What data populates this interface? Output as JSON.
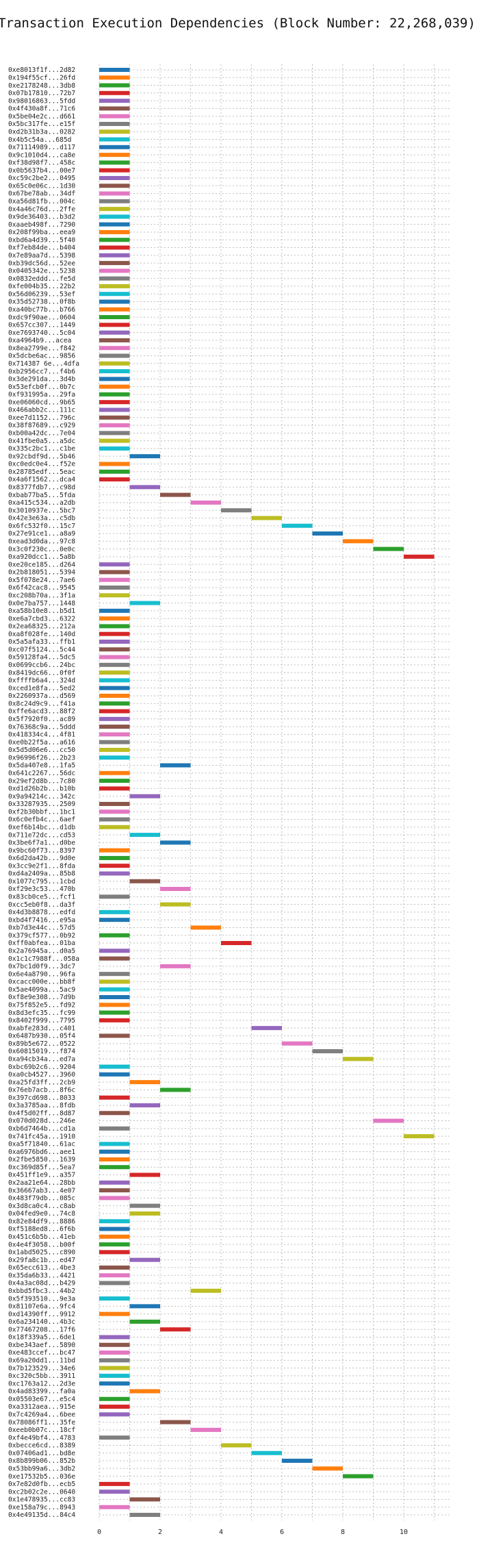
{
  "chart_data": {
    "type": "bar",
    "orientation": "horizontal-gantt",
    "title": "Transaction Execution Dependencies (Block Number: 22,268,039)",
    "xlabel": "",
    "ylabel": "",
    "xlim": [
      0,
      11.5
    ],
    "x_ticks": [
      0,
      2,
      4,
      6,
      8,
      10
    ],
    "grid": "vertical dotted",
    "palette": [
      "#1f77b4",
      "#ff7f0e",
      "#2ca02c",
      "#d62728",
      "#9467bd",
      "#8c564b",
      "#e377c2",
      "#7f7f7f",
      "#bcbd22",
      "#17becf"
    ],
    "bar_duration": 1,
    "transactions": [
      {
        "label": "0xe8013f1f...2d82",
        "start": 0
      },
      {
        "label": "0x194f55cf...26fd",
        "start": 0
      },
      {
        "label": "0xe2178248...3db8",
        "start": 0
      },
      {
        "label": "0x07b17810...72b7",
        "start": 0
      },
      {
        "label": "0x98016863...5fdd",
        "start": 0
      },
      {
        "label": "0x4f430a8f...71c6",
        "start": 0
      },
      {
        "label": "0x5be04e2c...d661",
        "start": 0
      },
      {
        "label": "0x5bc317fe...e15f",
        "start": 0
      },
      {
        "label": "0xd2b31b3a...0282",
        "start": 0
      },
      {
        "label": "0x4b5c54a...685d",
        "start": 0
      },
      {
        "label": "0x71114989...d117",
        "start": 0
      },
      {
        "label": "0x9c1010d4...ca8e",
        "start": 0
      },
      {
        "label": "0xf38d98f7...458c",
        "start": 0
      },
      {
        "label": "0x0b5637b4...00e7",
        "start": 0
      },
      {
        "label": "0xc59c2be2...0495",
        "start": 0
      },
      {
        "label": "0x65c0e06c...1d30",
        "start": 0
      },
      {
        "label": "0x67be78ab...34df",
        "start": 0
      },
      {
        "label": "0xa56d81fb...004c",
        "start": 0
      },
      {
        "label": "0x4a46c76d...2ffe",
        "start": 0
      },
      {
        "label": "0x9de36403...b3d2",
        "start": 0
      },
      {
        "label": "0xaaeb498f...7290",
        "start": 0
      },
      {
        "label": "0x208f99ba...eea9",
        "start": 0
      },
      {
        "label": "0xbd6a4d39...5f40",
        "start": 0
      },
      {
        "label": "0xf7eb84de...b404",
        "start": 0
      },
      {
        "label": "0x7e89aa7d...5398",
        "start": 0
      },
      {
        "label": "0xb39dc56d...52ee",
        "start": 0
      },
      {
        "label": "0x0405342e...5238",
        "start": 0
      },
      {
        "label": "0x0832eddd...fe5d",
        "start": 0
      },
      {
        "label": "0xfe004b35...22b2",
        "start": 0
      },
      {
        "label": "0x56d06239...53ef",
        "start": 0
      },
      {
        "label": "0x35d52738...0f8b",
        "start": 0
      },
      {
        "label": "0xa40bc77b...b766",
        "start": 0
      },
      {
        "label": "0xdc9f90ae...0604",
        "start": 0
      },
      {
        "label": "0x657cc307...1449",
        "start": 0
      },
      {
        "label": "0xe7693740...5c04",
        "start": 0
      },
      {
        "label": "0xa4964b9...acea",
        "start": 0
      },
      {
        "label": "0x8ea2799e...f842",
        "start": 0
      },
      {
        "label": "0x5dcbe6ac...9856",
        "start": 0
      },
      {
        "label": "0x714387 6e...4dfa",
        "start": 0
      },
      {
        "label": "0xb2956cc7...f4b6",
        "start": 0
      },
      {
        "label": "0x3de291da...3d4b",
        "start": 0
      },
      {
        "label": "0x53efcb0f...0b7c",
        "start": 0
      },
      {
        "label": "0xf931995a...29fa",
        "start": 0
      },
      {
        "label": "0xe06060cd...9b65",
        "start": 0
      },
      {
        "label": "0x466abb2c...111c",
        "start": 0
      },
      {
        "label": "0xee7d1152...796c",
        "start": 0
      },
      {
        "label": "0x38f87689...c929",
        "start": 0
      },
      {
        "label": "0xb00a42dc...7e04",
        "start": 0
      },
      {
        "label": "0x41fbe0a5...a5dc",
        "start": 0
      },
      {
        "label": "0x335c2bc1...c1be",
        "start": 0
      },
      {
        "label": "0x92cbdf9d...5b46",
        "start": 1
      },
      {
        "label": "0xc0edc0e4...f52e",
        "start": 0
      },
      {
        "label": "0x28785edf...5eac",
        "start": 0
      },
      {
        "label": "0x4a6f1562...dca4",
        "start": 0
      },
      {
        "label": "0x8377fdb7...c98d",
        "start": 1
      },
      {
        "label": "0xbab77ba5...5fda",
        "start": 2
      },
      {
        "label": "0xa415c534...a2db",
        "start": 3
      },
      {
        "label": "0x3010937e...5bc7",
        "start": 4
      },
      {
        "label": "0x42e3e63a...c5db",
        "start": 5
      },
      {
        "label": "0x6fc532f0...15c7",
        "start": 6
      },
      {
        "label": "0x27e91ce1...a8a9",
        "start": 7
      },
      {
        "label": "0xead3d0da...97c8",
        "start": 8
      },
      {
        "label": "0x3c0f230c...0e0c",
        "start": 9
      },
      {
        "label": "0xa920dcc1...5a8b",
        "start": 10
      },
      {
        "label": "0xe20ce185...d264",
        "start": 0
      },
      {
        "label": "0x2b818051...5394",
        "start": 0
      },
      {
        "label": "0x5f078e24...7ae6",
        "start": 0
      },
      {
        "label": "0x6f42cac8...9545",
        "start": 0
      },
      {
        "label": "0xc208b70a...3f1a",
        "start": 0
      },
      {
        "label": "0x0e7ba757...1448",
        "start": 1
      },
      {
        "label": "0xa58b10e8...b5d1",
        "start": 0
      },
      {
        "label": "0xe6a7cbd3...6322",
        "start": 0
      },
      {
        "label": "0x2ea68325...212a",
        "start": 0
      },
      {
        "label": "0xa8f028fe...140d",
        "start": 0
      },
      {
        "label": "0x5a5afa33...ffb1",
        "start": 0
      },
      {
        "label": "0xc07f5124...5c44",
        "start": 0
      },
      {
        "label": "0x59128fa4...5dc5",
        "start": 0
      },
      {
        "label": "0x0699ccb6...24bc",
        "start": 0
      },
      {
        "label": "0x8419dc66...0f0f",
        "start": 0
      },
      {
        "label": "0xffffb6a4...324d",
        "start": 0
      },
      {
        "label": "0xced1e8fa...5ed2",
        "start": 0
      },
      {
        "label": "0x2260937a...d569",
        "start": 0
      },
      {
        "label": "0x8c24d9c9...f41a",
        "start": 0
      },
      {
        "label": "0xffe6acd3...88f2",
        "start": 0
      },
      {
        "label": "0x5f7920f0...ac89",
        "start": 0
      },
      {
        "label": "0x76368c9a...5ddd",
        "start": 0
      },
      {
        "label": "0x418334c4...4f81",
        "start": 0
      },
      {
        "label": "0xe0b22f5a...a616",
        "start": 0
      },
      {
        "label": "0x5d5d06e6...cc50",
        "start": 0
      },
      {
        "label": "0x96996f26...2b23",
        "start": 0
      },
      {
        "label": "0x5da407e8...1fa5",
        "start": 2
      },
      {
        "label": "0x641c2267...56dc",
        "start": 0
      },
      {
        "label": "0x29ef2d8b...7c80",
        "start": 0
      },
      {
        "label": "0xd1d26b2b...b10b",
        "start": 0
      },
      {
        "label": "0x9a94214c...342c",
        "start": 1
      },
      {
        "label": "0x33287935...2509",
        "start": 0
      },
      {
        "label": "0xf2b30bbf...1bc1",
        "start": 0
      },
      {
        "label": "0x6c0efb4c...6aef",
        "start": 0
      },
      {
        "label": "0xef6b14bc...d1db",
        "start": 0
      },
      {
        "label": "0x711e72dc...cd53",
        "start": 1
      },
      {
        "label": "0x3be6f7a1...d0be",
        "start": 2
      },
      {
        "label": "0x9bc60f73...8397",
        "start": 0
      },
      {
        "label": "0x6d2da42b...9d0e",
        "start": 0
      },
      {
        "label": "0x3cc9e2f1...8fda",
        "start": 0
      },
      {
        "label": "0xd4a2409a...85b8",
        "start": 0
      },
      {
        "label": "0x1077c795...1cbd",
        "start": 1
      },
      {
        "label": "0xf29e3c53...470b",
        "start": 2
      },
      {
        "label": "0x83cb0ce5...fcf1",
        "start": 0
      },
      {
        "label": "0xcc5eb0f8...da3f",
        "start": 2
      },
      {
        "label": "0x4d3b8878...edfd",
        "start": 0
      },
      {
        "label": "0xbd4f7416...e95a",
        "start": 0
      },
      {
        "label": "0xb7d3e44c...57d5",
        "start": 3
      },
      {
        "label": "0x379cf577...0b92",
        "start": 0
      },
      {
        "label": "0xff0abfea...01ba",
        "start": 4
      },
      {
        "label": "0x2a76945a...d0a5",
        "start": 0
      },
      {
        "label": "0x1c1c7988f...058a",
        "start": 0
      },
      {
        "label": "0x7bc1d0f9...3dc7",
        "start": 2
      },
      {
        "label": "0x6e4a8790...96fa",
        "start": 0
      },
      {
        "label": "0xcacc000e...bb8f",
        "start": 0
      },
      {
        "label": "0x5ae4099a...5ac9",
        "start": 0
      },
      {
        "label": "0xf8e9e308...7d9b",
        "start": 0
      },
      {
        "label": "0x75f852e5...fd92",
        "start": 0
      },
      {
        "label": "0x8d3efc35...fc99",
        "start": 0
      },
      {
        "label": "0x8402f999...7795",
        "start": 0
      },
      {
        "label": "0xabfe283d...c401",
        "start": 5
      },
      {
        "label": "0x6487b930...05f4",
        "start": 0
      },
      {
        "label": "0x89b5e672...0522",
        "start": 6
      },
      {
        "label": "0x60815019...f874",
        "start": 7
      },
      {
        "label": "0xa94cb34a...ed7a",
        "start": 8
      },
      {
        "label": "0xbc69b2c6...9204",
        "start": 0
      },
      {
        "label": "0xa0cb4527...3960",
        "start": 0
      },
      {
        "label": "0xa25fd3ff...2cb9",
        "start": 1
      },
      {
        "label": "0x76eb7acb...8f6c",
        "start": 2
      },
      {
        "label": "0x397cd698...8033",
        "start": 0
      },
      {
        "label": "0x3a3785aa...8fdb",
        "start": 1
      },
      {
        "label": "0x4f5d02ff...8d87",
        "start": 0
      },
      {
        "label": "0x070d028d...246e",
        "start": 9
      },
      {
        "label": "0xb6d7464b...cd1a",
        "start": 0
      },
      {
        "label": "0x741fc45a...1910",
        "start": 10
      },
      {
        "label": "0xa5f71840...61ac",
        "start": 0
      },
      {
        "label": "0xa6976bd6...aee1",
        "start": 0
      },
      {
        "label": "0x2fbe5850...1639",
        "start": 0
      },
      {
        "label": "0xc369d85f...5ea7",
        "start": 0
      },
      {
        "label": "0x451ff1e9...a357",
        "start": 1
      },
      {
        "label": "0x2aa21e64...28bb",
        "start": 0
      },
      {
        "label": "0x36667ab3...4e07",
        "start": 0
      },
      {
        "label": "0x483f79db...085c",
        "start": 0
      },
      {
        "label": "0x3d8ca0c4...c8ab",
        "start": 1
      },
      {
        "label": "0x04fed9e0...74c8",
        "start": 1
      },
      {
        "label": "0x82e84df9...8886",
        "start": 0
      },
      {
        "label": "0xf5188ed8...6f6b",
        "start": 0
      },
      {
        "label": "0x451c6b5b...41eb",
        "start": 0
      },
      {
        "label": "0x4e4f3058...b00f",
        "start": 0
      },
      {
        "label": "0x1abd5025...c890",
        "start": 0
      },
      {
        "label": "0x29fa8c1b...ed47",
        "start": 1
      },
      {
        "label": "0x65ecc613...4be3",
        "start": 0
      },
      {
        "label": "0x35da6b33...4421",
        "start": 0
      },
      {
        "label": "0x4a3ac08d...b429",
        "start": 0
      },
      {
        "label": "0xbbd5fbc3...44b2",
        "start": 3
      },
      {
        "label": "0x5f393510...9e3a",
        "start": 0
      },
      {
        "label": "0x81107e6a...9fc4",
        "start": 1
      },
      {
        "label": "0xd14390ff...9912",
        "start": 0
      },
      {
        "label": "0x6a234140...4b3c",
        "start": 1
      },
      {
        "label": "0x77467208...17f6",
        "start": 2
      },
      {
        "label": "0x18f339a5...6de1",
        "start": 0
      },
      {
        "label": "0xbe343aef...5890",
        "start": 0
      },
      {
        "label": "0xe483ccef...bc47",
        "start": 0
      },
      {
        "label": "0x69a20dd1...11bd",
        "start": 0
      },
      {
        "label": "0x7b123529...34e6",
        "start": 0
      },
      {
        "label": "0xc320c5bb...3911",
        "start": 0
      },
      {
        "label": "0xc1763a12...2d3e",
        "start": 0
      },
      {
        "label": "0x4ad83399...fa0a",
        "start": 1
      },
      {
        "label": "0x05503e67...e5c4",
        "start": 0
      },
      {
        "label": "0xa3312aea...915e",
        "start": 0
      },
      {
        "label": "0x7c4269a4...6bee",
        "start": 0
      },
      {
        "label": "0x78086ff1...35fe",
        "start": 2
      },
      {
        "label": "0xeeb0b07c...18cf",
        "start": 3
      },
      {
        "label": "0xf4e49bf4...4783",
        "start": 0
      },
      {
        "label": "0xbecce6cd...8389",
        "start": 4
      },
      {
        "label": "0x07406ad1...bd8e",
        "start": 5
      },
      {
        "label": "0x8b899b06...852b",
        "start": 6
      },
      {
        "label": "0x53bb99a6...3db2",
        "start": 7
      },
      {
        "label": "0xe17532b5...036e",
        "start": 8
      },
      {
        "label": "0x7e82d0fb...ecb5",
        "start": 0
      },
      {
        "label": "0xc2b02c2e...0640",
        "start": 0
      },
      {
        "label": "0x1e478935...cc83",
        "start": 1
      },
      {
        "label": "0xe158a79c...8943",
        "start": 0
      },
      {
        "label": "0x4e49135d...84c4",
        "start": 1
      }
    ]
  }
}
